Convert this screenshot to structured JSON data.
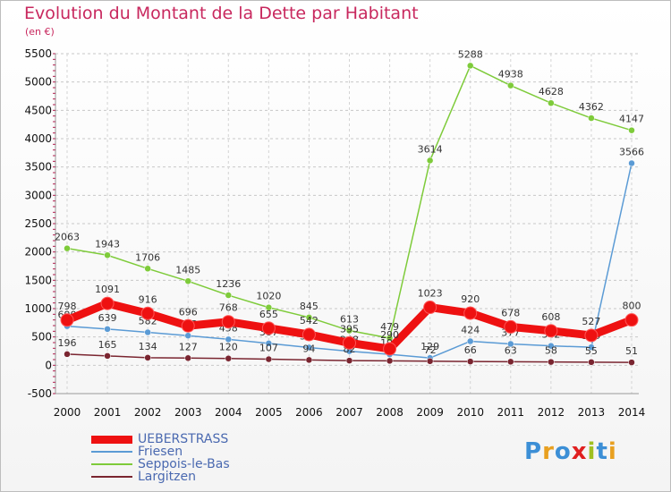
{
  "header": {
    "title": "Evolution du Montant de la Dette par Habitant",
    "subtitle": "(en €)"
  },
  "logo": {
    "text": "Proxiti",
    "colors": [
      "#3c8fd6",
      "#e8a020",
      "#3c8fd6",
      "#e02020",
      "#a0c020",
      "#3c8fd6",
      "#e8a020"
    ]
  },
  "chart_data": {
    "type": "line",
    "title": "Evolution du Montant de la Dette par Habitant",
    "subtitle": "(en €)",
    "xlabel": "",
    "ylabel": "",
    "x": [
      "2000",
      "2001",
      "2002",
      "2003",
      "2004",
      "2005",
      "2006",
      "2007",
      "2008",
      "2009",
      "2010",
      "2011",
      "2012",
      "2013",
      "2014"
    ],
    "ylim": [
      -500,
      5500
    ],
    "yticks": [
      "-500",
      "0",
      "500",
      "1000",
      "1500",
      "2000",
      "2500",
      "3000",
      "3500",
      "4000",
      "4500",
      "5000",
      "5500"
    ],
    "grid": true,
    "legend_position": "bottom-left",
    "series": [
      {
        "name": "Seppois-le-Bas",
        "color": "#7ecb3a",
        "values": [
          2063,
          1943,
          1706,
          1485,
          1236,
          1020,
          845,
          613,
          479,
          3614,
          5288,
          4938,
          4628,
          4362,
          4147
        ],
        "labels": [
          "2063",
          "1943",
          "1706",
          "1485",
          "1236",
          "1020",
          "845",
          "613",
          "479",
          "3614",
          "5288",
          "4938",
          "4628",
          "4362",
          "4147"
        ]
      },
      {
        "name": "Friesen",
        "color": "#5b9bd5",
        "values": [
          690,
          639,
          582,
          523,
          458,
          387,
          314,
          248,
          192,
          129,
          424,
          377,
          342,
          319,
          3566
        ],
        "labels": [
          "690",
          "639",
          "582",
          "523",
          "458",
          "387",
          "314",
          "248",
          "192",
          "129",
          "424",
          "377",
          "342",
          "319",
          "3566"
        ]
      },
      {
        "name": "Largitzen",
        "color": "#7a2530",
        "values": [
          196,
          165,
          134,
          127,
          120,
          107,
          94,
          82,
          78,
          72,
          66,
          63,
          58,
          55,
          51
        ],
        "labels": [
          "196",
          "165",
          "134",
          "127",
          "120",
          "107",
          "94",
          "82",
          "78",
          "72",
          "66",
          "63",
          "58",
          "55",
          "51"
        ]
      },
      {
        "name": "UEBERSTRASS",
        "color": "#ee1111",
        "values": [
          798,
          1091,
          916,
          696,
          768,
          655,
          542,
          395,
          290,
          1023,
          920,
          678,
          608,
          527,
          800
        ],
        "labels": [
          "798",
          "1091",
          "916",
          "696",
          "768",
          "655",
          "542",
          "395",
          "290",
          "1023",
          "920",
          "678",
          "608",
          "527",
          "800"
        ]
      }
    ]
  },
  "legend": [
    {
      "name": "UEBERSTRASS",
      "color": "#ee1111",
      "thick": true
    },
    {
      "name": "Friesen",
      "color": "#5b9bd5",
      "thick": false
    },
    {
      "name": "Seppois-le-Bas",
      "color": "#7ecb3a",
      "thick": false
    },
    {
      "name": "Largitzen",
      "color": "#7a2530",
      "thick": false
    }
  ]
}
